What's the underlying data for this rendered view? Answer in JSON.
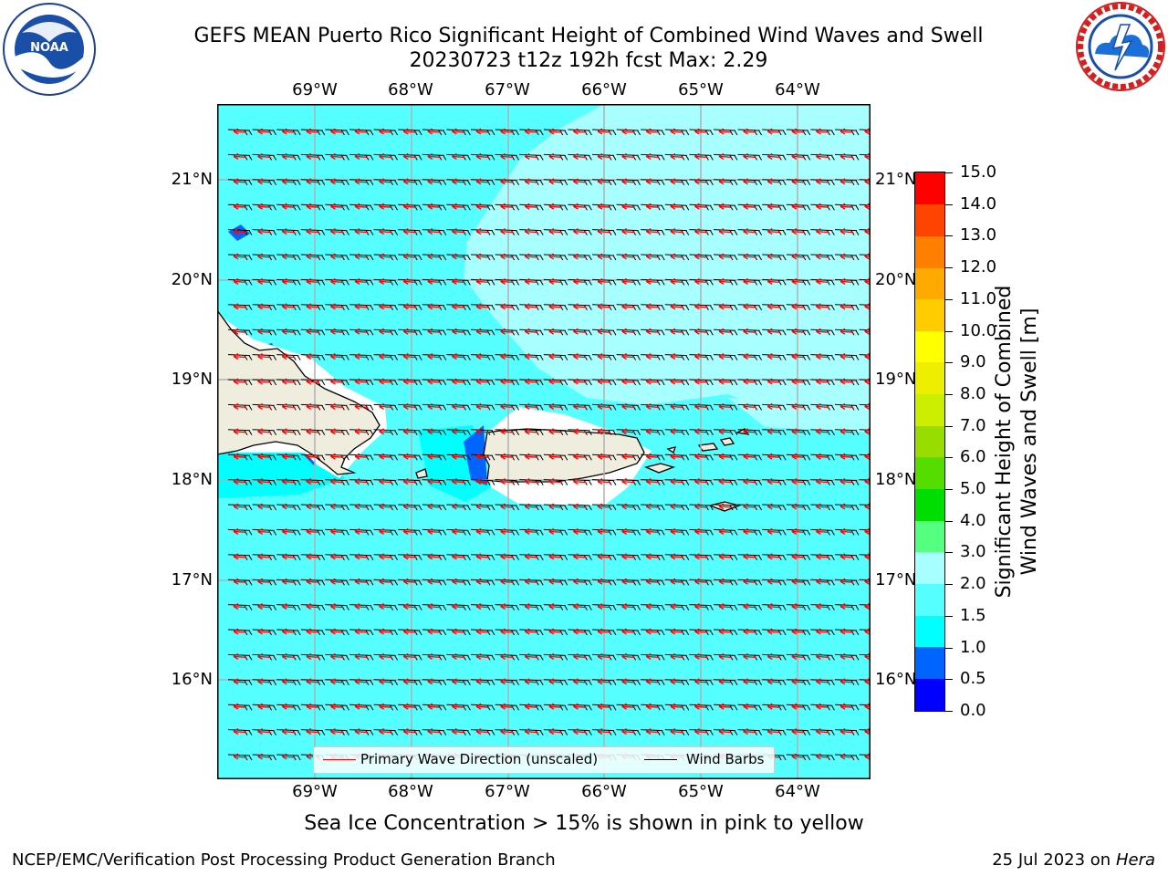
{
  "header": {
    "title_line1": "GEFS MEAN Puerto Rico Significant Height of Combined Wind Waves and Swell",
    "title_line2": "20230723 t12z 192h fcst   Max: 2.29"
  },
  "logos": {
    "noaa": {
      "icon": "noaa-logo-icon",
      "text": "NOAA",
      "ring_text": "NATIONAL OCEANIC AND ATMOSPHERIC ADMINISTRATION · U.S. DEPARTMENT OF COMMERCE"
    },
    "nws": {
      "icon": "nws-logo-icon",
      "ring_text": "NATIONAL WEATHER SERVICE"
    }
  },
  "map": {
    "lon_labels": [
      "69°W",
      "68°W",
      "67°W",
      "66°W",
      "65°W",
      "64°W"
    ],
    "lat_labels": [
      "21°N",
      "20°N",
      "19°N",
      "18°N",
      "17°N",
      "16°N"
    ],
    "colors": {
      "field_base": "#55ffff",
      "field_light": "#a8ffff",
      "field_cyan": "#00ffff",
      "field_blue": "#0064ff",
      "land": "#efedde",
      "ice_free_white": "#ffffff",
      "wave_arrow": "#ff0000",
      "wind_barb": "#000000",
      "gridline": "#b0b0b0"
    }
  },
  "legend": {
    "wave_direction": "Primary Wave Direction (unscaled)",
    "wind_barbs": "Wind Barbs"
  },
  "colorbar": {
    "title_line1": "Significant Height of Combined",
    "title_line2": "Wind Waves and Swell [m]",
    "ticks": [
      "0.0",
      "0.5",
      "1.0",
      "1.5",
      "2.0",
      "3.0",
      "4.0",
      "5.0",
      "6.0",
      "7.0",
      "8.0",
      "9.0",
      "10.0",
      "11.0",
      "12.0",
      "13.0",
      "14.0",
      "15.0"
    ],
    "colors": [
      "#0000ff",
      "#0064ff",
      "#00ffff",
      "#55ffff",
      "#a8ffff",
      "#55ff7f",
      "#00dd00",
      "#55dd00",
      "#99dd00",
      "#ccee00",
      "#eeee00",
      "#ffff00",
      "#ffcc00",
      "#ffaa00",
      "#ff7f00",
      "#ff4400",
      "#ff0000"
    ]
  },
  "notes": {
    "sea_ice": "Sea Ice Concentration > 15% is shown in pink to yellow"
  },
  "footer": {
    "left": "NCEP/EMC/Verification Post Processing Product Generation Branch",
    "right_prefix": "25 Jul 2023 on ",
    "right_host": "Hera"
  }
}
